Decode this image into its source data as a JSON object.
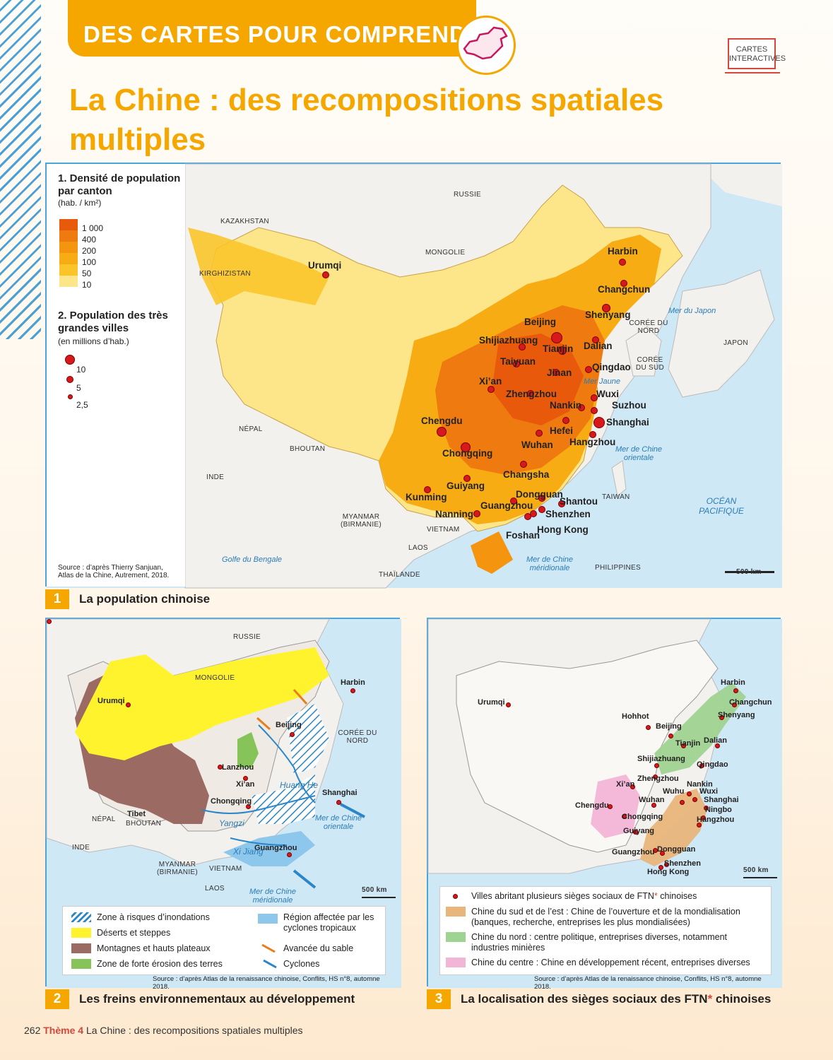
{
  "header": {
    "banner": "DES CARTES POUR COMPRENDRE",
    "cartes_interactives": "CARTES INTERACTIVES",
    "title_line1": "La Chine : des recompositions spatiales",
    "title_line2": "multiples"
  },
  "map1": {
    "legend": {
      "density_title": "1. Densité de population par canton",
      "density_unit": "(hab. / km²)",
      "density_values": [
        "1 000",
        "400",
        "200",
        "100",
        "50",
        "10"
      ],
      "density_colors": [
        "#e8590c",
        "#ef7a10",
        "#f4940f",
        "#f8ac14",
        "#fbc52a",
        "#fde68a"
      ],
      "cities_title": "2. Population des très grandes villes",
      "cities_unit": "(en millions d’hab.)",
      "city_sizes": [
        "10",
        "5",
        "2,5"
      ]
    },
    "source": "Source : d’après Thierry Sanjuan, Atlas de la Chine, Autrement, 2018.",
    "countries": [
      "RUSSIE",
      "KAZAKHSTAN",
      "MONGOLIE",
      "KIRGHIZISTAN",
      "CORÉE DU NORD",
      "CORÉE DU SUD",
      "JAPON",
      "NÉPAL",
      "BHOUTAN",
      "INDE",
      "MYANMAR (BIRMANIE)",
      "VIETNAM",
      "LAOS",
      "THAÏLANDE",
      "TAIWAN",
      "PHILIPPINES"
    ],
    "seas": [
      "Mer du Japon",
      "Mer Jaune",
      "Mer de Chine orientale",
      "OCÉAN PACIFIQUE",
      "Golfe du Bengale",
      "Mer de Chine méridionale"
    ],
    "cities": [
      "Harbin",
      "Changchun",
      "Shenyang",
      "Urumqi",
      "Beijing",
      "Tianjin",
      "Dalian",
      "Shijiazhuang",
      "Taiyuan",
      "Jinan",
      "Qingdao",
      "Xi’an",
      "Zhengzhou",
      "Wuxi",
      "Nankin",
      "Suzhou",
      "Shanghai",
      "Hefei",
      "Hangzhou",
      "Chengdu",
      "Chongqing",
      "Wuhan",
      "Changsha",
      "Guiyang",
      "Kunming",
      "Dongguan",
      "Shantou",
      "Nanning",
      "Guangzhou",
      "Shenzhen",
      "Hong Kong",
      "Foshan"
    ],
    "scale": "500 km",
    "caption_num": "1",
    "caption": "La population chinoise"
  },
  "map2": {
    "countries": [
      "RUSSIE",
      "MONGOLIE",
      "CORÉE DU NORD",
      "NÉPAL",
      "BHOUTAN",
      "INDE",
      "MYANMAR (BIRMANIE)",
      "VIETNAM",
      "LAOS"
    ],
    "cities": [
      "Harbin",
      "Urumqi",
      "Beijing",
      "Lanzhou",
      "Xi’an",
      "Tibet",
      "Chongqing",
      "Shanghai",
      "Guangzhou"
    ],
    "rivers": [
      "Huang He",
      "Yangzi",
      "Xi Jiang"
    ],
    "seas": [
      "Mer de Chine orientale",
      "Mer de Chine méridionale"
    ],
    "scale": "500 km",
    "legend": {
      "flood": "Zone à risques d’inondations",
      "desert": "Déserts et steppes",
      "mountains": "Montagnes et hauts plateaux",
      "erosion": "Zone de forte érosion des terres",
      "cyclone_region": "Région affectée par les cyclones tropicaux",
      "sand": "Avancée du sable",
      "cyclones": "Cyclones"
    },
    "source": "Source : d’après Atlas de la renaissance chinoise, Conflits, HS n°8, automne 2018.",
    "caption_num": "2",
    "caption": "Les freins environnementaux au développement"
  },
  "map3": {
    "cities": [
      "Harbin",
      "Changchun",
      "Shenyang",
      "Urumqi",
      "Hohhot",
      "Beijing",
      "Tianjin",
      "Dalian",
      "Shijiazhuang",
      "Qingdao",
      "Zhengzhou",
      "Xi’an",
      "Nankin",
      "Wuxi",
      "Wuhu",
      "Shanghai",
      "Chengdu",
      "Wuhan",
      "Ningbo",
      "Hangzhou",
      "Chongqing",
      "Guiyang",
      "Guangzhou",
      "Dongguan",
      "Shenzhen",
      "Hong Kong"
    ],
    "scale": "500 km",
    "legend": {
      "hq": "Villes abritant plusieurs sièges sociaux de FTN",
      "hq_star": "*",
      "hq_end": " chinoises",
      "south_east": "Chine du sud et de l’est : Chine de l’ouverture et de la mondialisation (banques, recherche, entreprises les plus mondialisées)",
      "north": "Chine du nord : centre politique, entreprises diverses, notamment industries minières",
      "centre": "Chine du centre : Chine en développement récent, entreprises diverses"
    },
    "source": "Source : d’après Atlas de la renaissance chinoise, Conflits, HS n°8, automne 2018.",
    "caption_num": "3",
    "caption": "La localisation des sièges sociaux des FTN",
    "caption_star": "*",
    "caption_end": " chinoises"
  },
  "footer": {
    "page": "262",
    "theme": "Thème 4",
    "text": "La Chine : des recompositions spatiales multiples"
  }
}
